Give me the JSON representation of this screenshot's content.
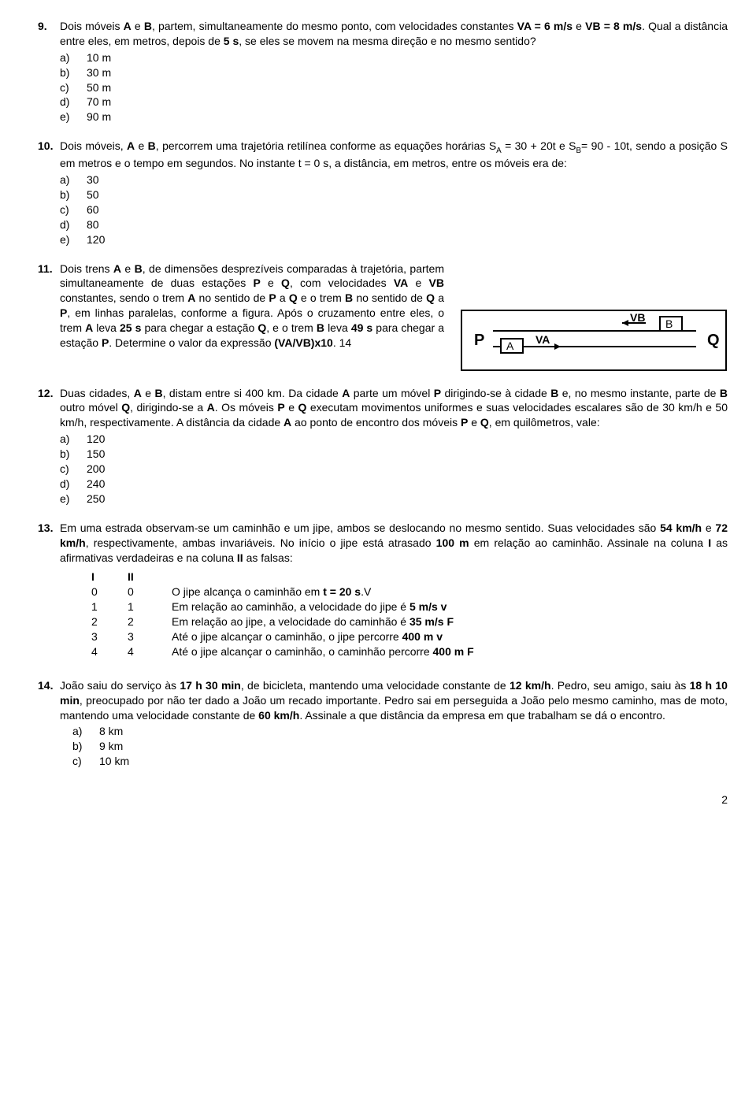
{
  "q9": {
    "num": "9.",
    "text_parts": [
      "Dois móveis ",
      "A",
      " e ",
      "B",
      ", partem, simultaneamente do mesmo ponto, com velocidades constantes ",
      "VA = 6 m/s",
      " e ",
      "VB = 8 m/s",
      ". Qual a distância entre eles, em metros, depois de    ",
      "5 s",
      ", se eles se movem na mesma direção e no mesmo sentido?"
    ],
    "options": [
      {
        "l": "a)",
        "t": "10 m"
      },
      {
        "l": "b)",
        "t": "30 m"
      },
      {
        "l": "c)",
        "t": "50 m"
      },
      {
        "l": "d)",
        "t": "70 m"
      },
      {
        "l": "e)",
        "t": "90 m"
      }
    ]
  },
  "q10": {
    "num": "10.",
    "pre": "Dois móveis, ",
    "a_b": [
      "A",
      " e ",
      "B"
    ],
    "mid": ", percorrem uma trajetória retilínea conforme as equações horárias S",
    "subA": "A",
    "eq1": " = 30 + 20t e S",
    "subB": "B",
    "eq2": "= 90 - 10t, sendo a posição S em metros e o tempo em segundos. No instante t = 0 s, a distância, em metros, entre os móveis era de:",
    "options": [
      {
        "l": "a)",
        "t": "30"
      },
      {
        "l": "b)",
        "t": "50"
      },
      {
        "l": "c)",
        "t": "60"
      },
      {
        "l": "d)",
        "t": "80"
      },
      {
        "l": "e)",
        "t": "120"
      }
    ]
  },
  "q11": {
    "num": "11.",
    "tokens": [
      "Dois trens ",
      "A",
      " e ",
      "B",
      ", de dimensões desprezíveis comparadas à trajetória, partem simultaneamente de duas estações ",
      "P",
      " e ",
      "Q",
      ", com velocidades ",
      "VA",
      " e ",
      "VB",
      " constantes, sendo o trem ",
      "A",
      " no sentido de ",
      "P",
      " a ",
      "Q",
      " e o trem ",
      "B",
      " no sentido de ",
      "Q",
      " a ",
      "P",
      ", em linhas paralelas, conforme a figura. Após o cruzamento entre eles, o trem ",
      "A",
      " leva ",
      "25 s",
      " para chegar a estação ",
      "Q",
      ", e o trem ",
      "B",
      " leva ",
      "49 s",
      " para chegar a estação ",
      "P",
      ". Determine o valor da expressão ",
      "(VA/VB)x10",
      ".  14"
    ],
    "bold_idx": [
      1,
      3,
      5,
      7,
      9,
      11,
      13,
      15,
      17,
      19,
      21,
      23,
      25,
      27,
      29,
      31,
      33,
      35,
      37
    ],
    "fig": {
      "P": "P",
      "Q": "Q",
      "A": "A",
      "B": "B",
      "VA": "VA",
      "VB": "VB"
    }
  },
  "q12": {
    "num": "12.",
    "tokens": [
      "Duas cidades, ",
      "A",
      " e ",
      "B",
      ", distam entre si 400 km. Da cidade ",
      "A",
      " parte um móvel ",
      "P",
      " dirigindo-se à cidade ",
      "B",
      " e, no mesmo instante, parte de ",
      "B",
      " outro móvel ",
      "Q",
      ", dirigindo-se a ",
      "A",
      ". Os móveis ",
      "P",
      " e ",
      "Q",
      " executam movimentos uniformes e suas velocidades escalares são de 30 km/h e 50 km/h, respectivamente. A distância da cidade ",
      "A",
      " ao ponto de encontro dos móveis ",
      "P",
      " e ",
      "Q",
      ", em quilômetros, vale:"
    ],
    "bold_idx": [
      1,
      3,
      5,
      7,
      9,
      11,
      13,
      15,
      17,
      19,
      21,
      23,
      25
    ],
    "options": [
      {
        "l": "a)",
        "t": "120"
      },
      {
        "l": "b)",
        "t": "150"
      },
      {
        "l": "c)",
        "t": "200"
      },
      {
        "l": "d)",
        "t": "240"
      },
      {
        "l": "e)",
        "t": "250"
      }
    ]
  },
  "q13": {
    "num": "13.",
    "tokens": [
      "Em uma estrada observam-se um caminhão e um jipe, ambos se deslocando no mesmo sentido. Suas velocidades são ",
      "54 km/h",
      " e ",
      "72 km/h",
      ", respectivamente, ambas invariáveis. No início o jipe está atrasado ",
      "100 m",
      " em relação ao caminhão. Assinale na coluna ",
      "I",
      " as afirmativas verdadeiras e na coluna ",
      "II",
      " as falsas:"
    ],
    "bold_idx": [
      1,
      3,
      5,
      7,
      9
    ],
    "head": {
      "I": "I",
      "II": "II"
    },
    "rows": [
      {
        "i": "0",
        "ii": "0",
        "tokens": [
          "O jipe alcança o caminhão em ",
          "t = 20 s",
          ".V"
        ],
        "bold_idx": [
          1
        ]
      },
      {
        "i": "1",
        "ii": "1",
        "tokens": [
          "Em relação ao caminhão, a velocidade do jipe é ",
          "5 m/s v"
        ],
        "bold_idx": [
          1
        ]
      },
      {
        "i": "2",
        "ii": "2",
        "tokens": [
          "Em relação ao jipe, a velocidade do caminhão é ",
          "35 m/s  F"
        ],
        "bold_idx": [
          1
        ]
      },
      {
        "i": "3",
        "ii": "3",
        "tokens": [
          "Até o jipe alcançar o caminhão, o jipe percorre ",
          "400 m  v"
        ],
        "bold_idx": [
          1
        ]
      },
      {
        "i": "4",
        "ii": "4",
        "tokens": [
          "Até o jipe alcançar o caminhão, o caminhão percorre ",
          "400 m F"
        ],
        "bold_idx": [
          1
        ]
      }
    ]
  },
  "q14": {
    "num": "14.",
    "tokens": [
      "João saiu do serviço às ",
      "17 h 30 min",
      ", de bicicleta, mantendo uma velocidade constante de ",
      "12 km/h",
      ". Pedro, seu amigo, saiu às ",
      "18 h 10 min",
      ", preocupado por não ter dado a João um recado importante. Pedro sai em perseguida a João pelo mesmo caminho, mas de moto, mantendo uma velocidade constante de ",
      "60 km/h",
      ". Assinale a que distância da empresa em que trabalham se dá o encontro."
    ],
    "bold_idx": [
      1,
      3,
      5,
      7
    ],
    "options": [
      {
        "l": "a)",
        "t": "8 km"
      },
      {
        "l": "b)",
        "t": "9 km"
      },
      {
        "l": "c)",
        "t": "10 km"
      }
    ]
  },
  "page_num": "2"
}
